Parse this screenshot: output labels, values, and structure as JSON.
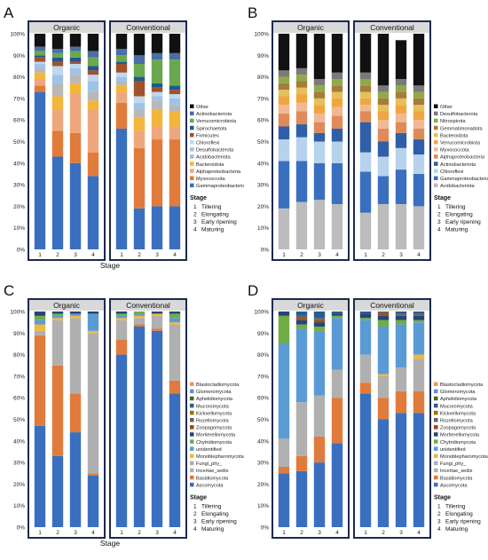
{
  "panels": [
    {
      "letter": "A",
      "group_titles": [
        "Organic",
        "Conventional"
      ],
      "xlabel": "Stage",
      "stage_title": "Stage",
      "legend": [
        "Other",
        "Actinobacteriota",
        "Verrucomicrobiota",
        "Spirochaetota",
        "Firmicutes",
        "Chloroflexi",
        "Desulfobacterota",
        "Acidobacteriota",
        "Bacteroidota",
        "Alphaproteobacteria",
        "Myxococcota",
        "Gammaproteobacteria"
      ]
    },
    {
      "letter": "B",
      "group_titles": [
        "Organic",
        "Conventional"
      ],
      "xlabel": "",
      "stage_title": "Stage",
      "legend": [
        "Other",
        "Desulfobacterota",
        "Nitrospirota",
        "Gemmatimonadota",
        "Bacteroidota",
        "Verrucomicrobiota",
        "Myxococcota",
        "Alphaproteobacteria",
        "Actinobacteriota",
        "Chloroflexi",
        "Gammaproteobacteria",
        "Acidobacteriota"
      ]
    },
    {
      "letter": "C",
      "group_titles": [
        "Organic",
        "Conventional"
      ],
      "xlabel": "Stage",
      "stage_title": "Stage",
      "legend": [
        "Blastocladiomycota",
        "Glomeromycota",
        "Aphelidiomycota",
        "Mucoromycota",
        "Kickxellomycota",
        "Rozellomycota",
        "Zoopagomycota",
        "Mortierellomycota",
        "Chytridiomycota",
        "unidentified",
        "Monoblepharomycota",
        "Fungi_phy_",
        "Incertae_sedis",
        "Basidiomycota",
        "Ascomycota"
      ]
    },
    {
      "letter": "D",
      "group_titles": [
        "Organic",
        "Conventional"
      ],
      "xlabel": "",
      "stage_title": "Stage",
      "legend": [
        "Blastocladiomycota",
        "Glomeromycota",
        "Aphelidiomycota",
        "Mucoromycota",
        "Kickxellomycota",
        "Rozellomycota",
        "Zoopagomycota",
        "Mortierellomycota",
        "Chytridiomycota",
        "unidentified",
        "Monoblepharomycota",
        "Fungi_phy_",
        "Incertae_sedis",
        "Basidiomycota",
        "Ascomycota"
      ]
    }
  ],
  "stage_legend": [
    {
      "num": "1",
      "name": "Tillering"
    },
    {
      "num": "2",
      "name": "Elongating"
    },
    {
      "num": "3",
      "name": "Early ripening"
    },
    {
      "num": "4",
      "name": "Maturing"
    }
  ],
  "chart_data": [
    {
      "panel": "A",
      "type": "bar",
      "stacked": true,
      "ylim": [
        0,
        100
      ],
      "yunit": "%",
      "y_ticks": [
        "0%",
        "10%",
        "20%",
        "30%",
        "40%",
        "50%",
        "60%",
        "70%",
        "80%",
        "90%",
        "100%"
      ],
      "groups": [
        "Organic",
        "Conventional"
      ],
      "categories": [
        "1",
        "2",
        "3",
        "4"
      ],
      "colors": {
        "Gammaproteobacteria": "#3a6fbf",
        "Myxococcota": "#e07b3c",
        "Alphaproteobacteria": "#eea77c",
        "Bacteroidota": "#f2b73a",
        "Acidobacteriota": "#b8b8b8",
        "Desulfobacterota": "#9fc3e7",
        "Chloroflexi": "#c0d7ef",
        "Firmicutes": "#a0522d",
        "Spirochaetota": "#1f5a8b",
        "Verrucomicrobiota": "#6aa84f",
        "Actinobacteriota": "#4a6fa5",
        "Other": "#111111"
      },
      "series": [
        {
          "name": "Gammaproteobacteria",
          "organic": [
            73,
            43,
            40,
            34
          ],
          "conventional": [
            56,
            19,
            20,
            20
          ]
        },
        {
          "name": "Myxococcota",
          "organic": [
            3,
            12,
            14,
            11
          ],
          "conventional": [
            12,
            28,
            31,
            31
          ]
        },
        {
          "name": "Alphaproteobacteria",
          "organic": [
            3,
            10,
            18,
            20
          ],
          "conventional": [
            5,
            8,
            6,
            6
          ]
        },
        {
          "name": "Bacteroidota",
          "organic": [
            3,
            6,
            5,
            4
          ],
          "conventional": [
            3,
            6,
            8,
            7
          ]
        },
        {
          "name": "Acidobacteriota",
          "organic": [
            2,
            6,
            4,
            4
          ],
          "conventional": [
            2,
            4,
            4,
            3
          ]
        },
        {
          "name": "Desulfobacterota",
          "organic": [
            2,
            4,
            3,
            5
          ],
          "conventional": [
            2,
            3,
            2,
            3
          ]
        },
        {
          "name": "Chloroflexi",
          "organic": [
            1,
            4,
            2,
            3
          ],
          "conventional": [
            2,
            3,
            2,
            2
          ]
        },
        {
          "name": "Firmicutes",
          "organic": [
            2,
            2,
            1,
            2
          ],
          "conventional": [
            4,
            7,
            2,
            2
          ]
        },
        {
          "name": "Spirochaetota",
          "organic": [
            1,
            2,
            2,
            2
          ],
          "conventional": [
            1,
            2,
            2,
            2
          ]
        },
        {
          "name": "Verrucomicrobiota",
          "organic": [
            2,
            2,
            3,
            4
          ],
          "conventional": [
            3,
            6,
            11,
            12
          ]
        },
        {
          "name": "Actinobacteriota",
          "organic": [
            2,
            2,
            2,
            3
          ],
          "conventional": [
            3,
            4,
            3,
            3
          ]
        },
        {
          "name": "Other",
          "organic": [
            6,
            7,
            6,
            8
          ],
          "conventional": [
            7,
            10,
            9,
            9
          ]
        }
      ]
    },
    {
      "panel": "B",
      "type": "bar",
      "stacked": true,
      "ylim": [
        0,
        100
      ],
      "yunit": "%",
      "y_ticks": [
        "0%",
        "10%",
        "20%",
        "30%",
        "40%",
        "50%",
        "60%",
        "70%",
        "80%",
        "90%",
        "100%"
      ],
      "groups": [
        "Organic",
        "Conventional"
      ],
      "categories": [
        "1",
        "2",
        "3",
        "4"
      ],
      "colors": {
        "Acidobacteriota": "#bcbcbc",
        "Gammaproteobacteria": "#3a6fbf",
        "Chloroflexi": "#b7d2ec",
        "Actinobacteriota": "#2f5fa8",
        "Alphaproteobacteria": "#e08a5a",
        "Myxococcota": "#f0b894",
        "Verrucomicrobiota": "#f0a640",
        "Bacteroidota": "#e5c05a",
        "Gemmatimonadota": "#a67c3a",
        "Nitrospirota": "#8faa48",
        "Desulfobacterota": "#7a7a7a",
        "Other": "#111111"
      },
      "series": [
        {
          "name": "Acidobacteriota",
          "organic": [
            19,
            22,
            23,
            21
          ],
          "conventional": [
            17,
            21,
            21,
            20
          ]
        },
        {
          "name": "Gammaproteobacteria",
          "organic": [
            22,
            19,
            17,
            19
          ],
          "conventional": [
            19,
            13,
            16,
            15
          ]
        },
        {
          "name": "Chloroflexi",
          "organic": [
            10,
            11,
            10,
            10
          ],
          "conventional": [
            9,
            9,
            10,
            9
          ]
        },
        {
          "name": "Actinobacteriota",
          "organic": [
            6,
            6,
            4,
            6
          ],
          "conventional": [
            14,
            7,
            7,
            7
          ]
        },
        {
          "name": "Alphaproteobacteria",
          "organic": [
            6,
            6,
            5,
            6
          ],
          "conventional": [
            5,
            6,
            5,
            5
          ]
        },
        {
          "name": "Myxococcota",
          "organic": [
            4,
            4,
            4,
            4
          ],
          "conventional": [
            3,
            4,
            4,
            4
          ]
        },
        {
          "name": "Verrucomicrobiota",
          "organic": [
            4,
            4,
            4,
            4
          ],
          "conventional": [
            3,
            4,
            4,
            4
          ]
        },
        {
          "name": "Bacteroidota",
          "organic": [
            3,
            3,
            3,
            3
          ],
          "conventional": [
            3,
            3,
            3,
            3
          ]
        },
        {
          "name": "Gemmatimonadota",
          "organic": [
            3,
            3,
            3,
            3
          ],
          "conventional": [
            3,
            3,
            3,
            3
          ]
        },
        {
          "name": "Nitrospirota",
          "organic": [
            3,
            3,
            3,
            3
          ],
          "conventional": [
            3,
            3,
            3,
            3
          ]
        },
        {
          "name": "Desulfobacterota",
          "organic": [
            3,
            3,
            3,
            3
          ],
          "conventional": [
            3,
            3,
            3,
            3
          ]
        },
        {
          "name": "Other",
          "organic": [
            17,
            16,
            21,
            18
          ],
          "conventional": [
            18,
            24,
            18,
            24
          ]
        }
      ]
    },
    {
      "panel": "C",
      "type": "bar",
      "stacked": true,
      "ylim": [
        0,
        100
      ],
      "yunit": "%",
      "y_ticks": [
        "0%",
        "10%",
        "20%",
        "30%",
        "40%",
        "50%",
        "60%",
        "70%",
        "80%",
        "90%",
        "100%"
      ],
      "groups": [
        "Organic",
        "Conventional"
      ],
      "categories": [
        "1",
        "2",
        "3",
        "4"
      ],
      "colors": {
        "Ascomycota": "#3a6fbf",
        "Basidiomycota": "#e07b3c",
        "Incertae_sedis": "#b0b0b0",
        "Fungi_phy_": "#b0b0b0",
        "Monoblepharomycota": "#f2b73a",
        "unidentified": "#5b9bd5",
        "Chytridiomycota": "#70ad47",
        "Mortierellomycota": "#264478",
        "Zoopagomycota": "#9e480e",
        "Rozellomycota": "#636363",
        "Kickxellomycota": "#997300",
        "Mucoromycota": "#255e91",
        "Aphelidiomycota": "#43682b",
        "Glomeromycota": "#698ed0",
        "Blastocladiomycota": "#f1975a"
      },
      "series": [
        {
          "name": "Ascomycota",
          "organic": [
            47,
            33,
            44,
            24
          ],
          "conventional": [
            80,
            93,
            91,
            62
          ]
        },
        {
          "name": "Basidiomycota",
          "organic": [
            42,
            42,
            18,
            1
          ],
          "conventional": [
            7,
            1,
            1,
            6
          ]
        },
        {
          "name": "Fungi_phy_ Incertae_sedis",
          "organic": [
            2,
            21,
            35,
            65
          ],
          "conventional": [
            9,
            3,
            6,
            26
          ]
        },
        {
          "name": "Monoblepharomycota",
          "organic": [
            3,
            1,
            1,
            1
          ],
          "conventional": [
            1,
            1,
            1,
            1
          ]
        },
        {
          "name": "unidentified",
          "organic": [
            2,
            1,
            1,
            8
          ],
          "conventional": [
            1,
            1,
            0,
            2
          ]
        },
        {
          "name": "Chytridiomycota",
          "organic": [
            2,
            1,
            0,
            0
          ],
          "conventional": [
            1,
            1,
            0,
            2
          ]
        },
        {
          "name": "Mortierellomycota",
          "organic": [
            2,
            1,
            1,
            1
          ],
          "conventional": [
            1,
            0,
            1,
            1
          ]
        }
      ]
    },
    {
      "panel": "D",
      "type": "bar",
      "stacked": true,
      "ylim": [
        0,
        100
      ],
      "yunit": "%",
      "y_ticks": [
        "0%",
        "10%",
        "20%",
        "30%",
        "40%",
        "50%",
        "60%",
        "70%",
        "80%",
        "90%",
        "100%"
      ],
      "groups": [
        "Organic",
        "Conventional"
      ],
      "categories": [
        "1",
        "2",
        "3",
        "4"
      ],
      "colors": {
        "Ascomycota": "#3a6fbf",
        "Basidiomycota": "#e07b3c",
        "Incertae_sedis": "#b0b0b0",
        "Fungi_phy_": "#b0b0b0",
        "Monoblepharomycota": "#f2b73a",
        "unidentified": "#5b9bd5",
        "Chytridiomycota": "#70ad47",
        "Mortierellomycota": "#264478",
        "Zoopagomycota": "#9e480e",
        "Rozellomycota": "#636363",
        "Kickxellomycota": "#997300",
        "Mucoromycota": "#255e91",
        "Aphelidiomycota": "#43682b",
        "Glomeromycota": "#698ed0",
        "Blastocladiomycota": "#f1975a"
      },
      "series": [
        {
          "name": "Ascomycota",
          "organic": [
            25,
            26,
            30,
            39
          ],
          "conventional": [
            62,
            50,
            53,
            53
          ]
        },
        {
          "name": "Basidiomycota",
          "organic": [
            3,
            7,
            12,
            21
          ],
          "conventional": [
            5,
            10,
            10,
            10
          ]
        },
        {
          "name": "Fungi_phy_ Incertae_sedis",
          "organic": [
            13,
            25,
            19,
            13
          ],
          "conventional": [
            13,
            10,
            11,
            15
          ]
        },
        {
          "name": "Monoblepharomycota",
          "organic": [
            0,
            0,
            0,
            0
          ],
          "conventional": [
            0,
            1,
            0,
            2
          ]
        },
        {
          "name": "unidentified",
          "organic": [
            44,
            34,
            30,
            24
          ],
          "conventional": [
            16,
            22,
            20,
            15
          ]
        },
        {
          "name": "Chytridiomycota",
          "organic": [
            13,
            2,
            2,
            1
          ],
          "conventional": [
            1,
            3,
            2,
            1
          ]
        },
        {
          "name": "Mortierellomycota",
          "organic": [
            2,
            2,
            2,
            1
          ],
          "conventional": [
            2,
            2,
            2,
            2
          ]
        },
        {
          "name": "Zoopagomycota",
          "organic": [
            0,
            1,
            1,
            0
          ],
          "conventional": [
            0,
            1,
            0,
            0
          ]
        },
        {
          "name": "Rozellomycota",
          "organic": [
            0,
            1,
            1,
            0
          ],
          "conventional": [
            0,
            1,
            1,
            1
          ]
        },
        {
          "name": "Mucoromycota",
          "organic": [
            0,
            2,
            3,
            1
          ],
          "conventional": [
            1,
            1,
            1,
            1
          ]
        }
      ]
    }
  ]
}
